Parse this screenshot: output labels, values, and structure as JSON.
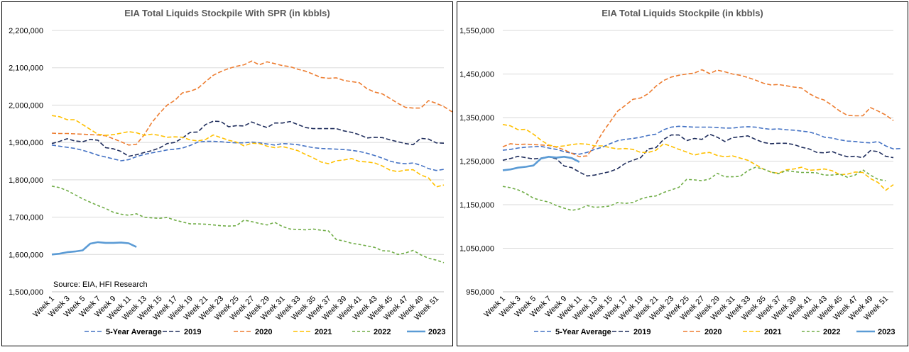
{
  "chart_data": [
    {
      "type": "line",
      "title": "EIA Total Liquids Stockpile With SPR (in kbbls)",
      "source": "Source: EIA, HFI Research",
      "ylim": [
        1500000,
        2200000
      ],
      "yticks": [
        1500000,
        1600000,
        1700000,
        1800000,
        1900000,
        2000000,
        2100000,
        2200000
      ],
      "ytick_labels": [
        "1,500,000",
        "1,600,000",
        "1,700,000",
        "1,800,000",
        "1,900,000",
        "2,000,000",
        "2,100,000",
        "2,200,000"
      ],
      "x_labels": [
        "Week 1",
        "Week 3",
        "Week 5",
        "Week 7",
        "Week 9",
        "Week 11",
        "Week 13",
        "Week 15",
        "Week 17",
        "Week 19",
        "Week 21",
        "Week 23",
        "Week 25",
        "Week 27",
        "Week 29",
        "Week 31",
        "Week 33",
        "Week 35",
        "Week 37",
        "Week 39",
        "Week 41",
        "Week 43",
        "Week 45",
        "Week 47",
        "Week 49",
        "Week 51"
      ],
      "series": [
        {
          "name": "5-Year Average",
          "color": "#4472c4",
          "dash": "6,3",
          "width": 1.6,
          "values": [
            1893000,
            1890000,
            1887000,
            1884000,
            1879000,
            1873000,
            1866000,
            1861000,
            1856000,
            1851000,
            1854000,
            1862000,
            1868000,
            1872000,
            1876000,
            1880000,
            1882000,
            1885000,
            1892000,
            1901000,
            1903000,
            1903000,
            1902000,
            1900000,
            1899000,
            1899000,
            1901000,
            1899000,
            1896000,
            1893000,
            1897000,
            1896000,
            1894000,
            1890000,
            1886000,
            1884000,
            1883000,
            1882000,
            1881000,
            1879000,
            1876000,
            1871000,
            1865000,
            1858000,
            1850000,
            1845000,
            1843000,
            1845000,
            1839000,
            1830000,
            1825000,
            1828000
          ]
        },
        {
          "name": "2019",
          "color": "#1f2d5c",
          "dash": "6,3",
          "width": 1.6,
          "values": [
            1897000,
            1903000,
            1910000,
            1904000,
            1902000,
            1908000,
            1906000,
            1886000,
            1883000,
            1876000,
            1863000,
            1867000,
            1873000,
            1878000,
            1885000,
            1897000,
            1900000,
            1912000,
            1927000,
            1928000,
            1948000,
            1957000,
            1956000,
            1942000,
            1945000,
            1944000,
            1955000,
            1947000,
            1940000,
            1952000,
            1952000,
            1956000,
            1948000,
            1940000,
            1937000,
            1937000,
            1937000,
            1937000,
            1931000,
            1927000,
            1921000,
            1912000,
            1914000,
            1913000,
            1907000,
            1902000,
            1897000,
            1894000,
            1911000,
            1909000,
            1899000,
            1898000
          ]
        },
        {
          "name": "2020",
          "color": "#ed7d31",
          "dash": "6,3",
          "width": 1.6,
          "values": [
            1925000,
            1924000,
            1924000,
            1923000,
            1922000,
            1921000,
            1920000,
            1918000,
            1910000,
            1902000,
            1893000,
            1895000,
            1920000,
            1953000,
            1978000,
            2000000,
            2013000,
            2033000,
            2037000,
            2045000,
            2063000,
            2080000,
            2090000,
            2098000,
            2104000,
            2108000,
            2118000,
            2108000,
            2116000,
            2111000,
            2106000,
            2103000,
            2096000,
            2091000,
            2083000,
            2074000,
            2072000,
            2073000,
            2066000,
            2063000,
            2060000,
            2044000,
            2035000,
            2030000,
            2018000,
            2005000,
            1994000,
            1992000,
            1992000,
            2012000,
            2005000,
            1996000,
            1983000,
            1982000
          ]
        },
        {
          "name": "2021",
          "color": "#ffc000",
          "dash": "6,3",
          "width": 1.6,
          "values": [
            1972000,
            1969000,
            1961000,
            1961000,
            1948000,
            1935000,
            1922000,
            1919000,
            1921000,
            1925000,
            1929000,
            1926000,
            1919000,
            1922000,
            1919000,
            1914000,
            1915000,
            1914000,
            1907000,
            1904000,
            1908000,
            1920000,
            1913000,
            1906000,
            1901000,
            1891000,
            1898000,
            1897000,
            1890000,
            1886000,
            1889000,
            1884000,
            1878000,
            1868000,
            1859000,
            1848000,
            1843000,
            1851000,
            1853000,
            1857000,
            1849000,
            1848000,
            1845000,
            1837000,
            1826000,
            1822000,
            1826000,
            1827000,
            1813000,
            1805000,
            1781000,
            1786000
          ]
        },
        {
          "name": "2022",
          "color": "#70ad47",
          "dash": "4,3",
          "width": 1.6,
          "values": [
            1783000,
            1779000,
            1771000,
            1760000,
            1749000,
            1740000,
            1731000,
            1723000,
            1713000,
            1708000,
            1705000,
            1709000,
            1700000,
            1698000,
            1697000,
            1699000,
            1692000,
            1687000,
            1682000,
            1682000,
            1681000,
            1679000,
            1677000,
            1676000,
            1677000,
            1692000,
            1688000,
            1683000,
            1679000,
            1686000,
            1675000,
            1668000,
            1667000,
            1666000,
            1668000,
            1665000,
            1663000,
            1640000,
            1636000,
            1630000,
            1627000,
            1623000,
            1619000,
            1610000,
            1609000,
            1600000,
            1604000,
            1611000,
            1599000,
            1590000,
            1585000,
            1578000
          ]
        },
        {
          "name": "2023",
          "color": "#5b9bd5",
          "dash": "",
          "width": 2.6,
          "values": [
            1600000,
            1602000,
            1606000,
            1608000,
            1611000,
            1629000,
            1633000,
            1631000,
            1631000,
            1632000,
            1630000,
            1620000
          ]
        }
      ]
    },
    {
      "type": "line",
      "title": "EIA Total Liquids Stockpile (in kbbls)",
      "ylim": [
        950000,
        1550000
      ],
      "yticks": [
        950000,
        1050000,
        1150000,
        1250000,
        1350000,
        1450000,
        1550000
      ],
      "ytick_labels": [
        "950,000",
        "1,050,000",
        "1,150,000",
        "1,250,000",
        "1,350,000",
        "1,450,000",
        "1,550,000"
      ],
      "x_labels": [
        "Week 1",
        "Week 3",
        "Week 5",
        "Week 7",
        "Week 9",
        "Week 11",
        "Week 13",
        "Week 15",
        "Week 17",
        "Week 19",
        "Week 21",
        "Week 23",
        "Week 25",
        "Week 27",
        "Week 29",
        "Week 31",
        "Week 33",
        "Week 35",
        "Week 37",
        "Week 39",
        "Week 41",
        "Week 43",
        "Week 45",
        "Week 47",
        "Week 49",
        "Week 51"
      ],
      "series": [
        {
          "name": "5-Year Average",
          "color": "#4472c4",
          "dash": "6,3",
          "width": 1.6,
          "values": [
            1275000,
            1277000,
            1280000,
            1282000,
            1283000,
            1284000,
            1280000,
            1277000,
            1272000,
            1268000,
            1266000,
            1270000,
            1277000,
            1282000,
            1290000,
            1297000,
            1300000,
            1302000,
            1305000,
            1309000,
            1312000,
            1322000,
            1328000,
            1330000,
            1329000,
            1328000,
            1328000,
            1328000,
            1327000,
            1326000,
            1326000,
            1328000,
            1329000,
            1328000,
            1325000,
            1323000,
            1324000,
            1322000,
            1321000,
            1319000,
            1317000,
            1312000,
            1305000,
            1303000,
            1299000,
            1296000,
            1295000,
            1293000,
            1292000,
            1295000,
            1285000,
            1278000,
            1279000
          ]
        },
        {
          "name": "2019",
          "color": "#1f2d5c",
          "dash": "6,3",
          "width": 1.6,
          "values": [
            1252000,
            1256000,
            1261000,
            1258000,
            1255000,
            1257000,
            1260000,
            1255000,
            1239000,
            1235000,
            1225000,
            1216000,
            1218000,
            1222000,
            1226000,
            1233000,
            1245000,
            1252000,
            1258000,
            1278000,
            1281000,
            1300000,
            1310000,
            1310000,
            1297000,
            1302000,
            1300000,
            1312000,
            1305000,
            1295000,
            1304000,
            1306000,
            1308000,
            1300000,
            1293000,
            1290000,
            1291000,
            1291000,
            1288000,
            1282000,
            1278000,
            1270000,
            1269000,
            1272000,
            1265000,
            1260000,
            1261000,
            1258000,
            1274000,
            1272000,
            1261000,
            1258000
          ]
        },
        {
          "name": "2020",
          "color": "#ed7d31",
          "dash": "6,3",
          "width": 1.6,
          "values": [
            1283000,
            1290000,
            1288000,
            1289000,
            1288000,
            1287000,
            1286000,
            1282000,
            1276000,
            1268000,
            1260000,
            1262000,
            1285000,
            1315000,
            1340000,
            1365000,
            1378000,
            1392000,
            1395000,
            1405000,
            1422000,
            1435000,
            1443000,
            1447000,
            1450000,
            1452000,
            1460000,
            1451000,
            1459000,
            1455000,
            1450000,
            1447000,
            1442000,
            1436000,
            1429000,
            1425000,
            1426000,
            1423000,
            1420000,
            1418000,
            1405000,
            1396000,
            1390000,
            1378000,
            1365000,
            1355000,
            1354000,
            1354000,
            1373000,
            1365000,
            1356000,
            1343000
          ]
        },
        {
          "name": "2021",
          "color": "#ffc000",
          "dash": "6,3",
          "width": 1.6,
          "values": [
            1334000,
            1331000,
            1322000,
            1323000,
            1312000,
            1298000,
            1287000,
            1283000,
            1285000,
            1288000,
            1290000,
            1289000,
            1285000,
            1285000,
            1281000,
            1278000,
            1279000,
            1277000,
            1270000,
            1270000,
            1275000,
            1290000,
            1284000,
            1277000,
            1271000,
            1264000,
            1268000,
            1270000,
            1263000,
            1260000,
            1262000,
            1257000,
            1252000,
            1242000,
            1232000,
            1225000,
            1222000,
            1230000,
            1232000,
            1236000,
            1229000,
            1230000,
            1232000,
            1228000,
            1219000,
            1220000,
            1225000,
            1224000,
            1210000,
            1201000,
            1183000,
            1196000
          ]
        },
        {
          "name": "2022",
          "color": "#70ad47",
          "dash": "4,3",
          "width": 1.6,
          "values": [
            1192000,
            1189000,
            1184000,
            1176000,
            1165000,
            1160000,
            1156000,
            1148000,
            1142000,
            1137000,
            1140000,
            1148000,
            1144000,
            1145000,
            1147000,
            1155000,
            1153000,
            1155000,
            1163000,
            1168000,
            1170000,
            1178000,
            1184000,
            1190000,
            1208000,
            1207000,
            1205000,
            1209000,
            1222000,
            1214000,
            1214000,
            1215000,
            1228000,
            1236000,
            1232000,
            1225000,
            1221000,
            1228000,
            1226000,
            1224000,
            1224000,
            1223000,
            1218000,
            1218000,
            1220000,
            1213000,
            1218000,
            1230000,
            1218000,
            1208000,
            1205000
          ]
        },
        {
          "name": "2023",
          "color": "#5b9bd5",
          "dash": "",
          "width": 2.6,
          "values": [
            1229000,
            1231000,
            1235000,
            1237000,
            1240000,
            1256000,
            1260000,
            1258000,
            1260000,
            1257000,
            1248000
          ]
        }
      ]
    }
  ]
}
